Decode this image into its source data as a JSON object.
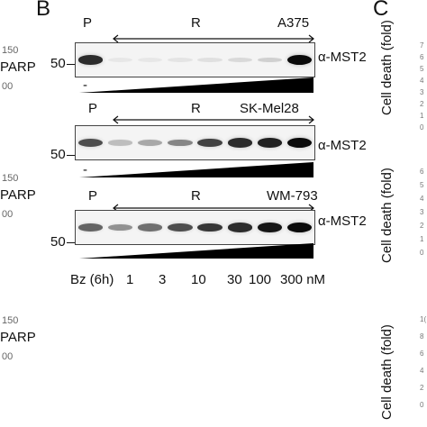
{
  "panels": {
    "left_partial": "",
    "b": "B",
    "c": "C"
  },
  "left_column": {
    "rows": [
      {
        "num_top": "150",
        "label": "PARP",
        "num_bottom": "00"
      },
      {
        "num_top": "150",
        "label": "PARP",
        "num_bottom": "00"
      },
      {
        "num_top": "150",
        "label": "PARP",
        "num_bottom": "00"
      }
    ]
  },
  "blots": [
    {
      "p": "P",
      "r": "R",
      "cell_line": "A375",
      "antibody": "α-MST2",
      "marker": "50",
      "minus": "-",
      "band_intensity": [
        0.85,
        0.02,
        0.02,
        0.03,
        0.05,
        0.08,
        0.12,
        1.0
      ]
    },
    {
      "p": "P",
      "r": "R",
      "cell_line": "SK-Mel28",
      "antibody": "α-MST2",
      "marker": "50",
      "minus": "-",
      "band_intensity": [
        0.7,
        0.2,
        0.3,
        0.45,
        0.75,
        0.85,
        0.9,
        1.0
      ]
    },
    {
      "p": "P",
      "r": "R",
      "cell_line": "WM-793",
      "antibody": "α-MST2",
      "marker": "50",
      "minus": "-",
      "band_intensity": [
        0.6,
        0.4,
        0.55,
        0.7,
        0.8,
        0.85,
        0.95,
        1.0
      ]
    }
  ],
  "bz_row": {
    "label": "Bz (6h)",
    "doses": [
      "1",
      "3",
      "10",
      "30",
      "100",
      "300 nM"
    ]
  },
  "right_column": {
    "ylabels": [
      "Cell death (fold)",
      "Cell death (fold)",
      "Cell death (fold)"
    ],
    "ticks_1": [
      "7",
      "6",
      "5",
      "4",
      "3",
      "2",
      "1",
      "0"
    ],
    "ticks_2": [
      "6",
      "5",
      "4",
      "3",
      "2",
      "1",
      "0"
    ],
    "ticks_3": [
      "1(",
      "8",
      "6",
      "4",
      "2",
      "0"
    ]
  }
}
